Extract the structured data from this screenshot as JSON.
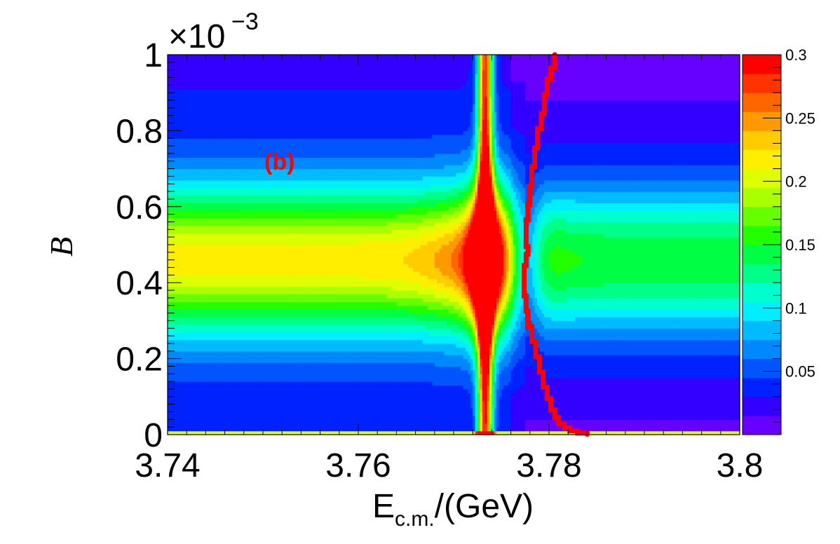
{
  "chart_data": {
    "type": "heatmap",
    "title": "",
    "panel_label": "(b)",
    "xlabel_main": "E",
    "xlabel_subscript": "c.m.",
    "xlabel_tail": "/(GeV)",
    "ylabel": "B",
    "y_multiplier_base": "×10",
    "y_multiplier_exp": "−3",
    "xlim": [
      3.74,
      3.8
    ],
    "ylim": [
      0,
      1.0
    ],
    "x_ticks": [
      3.74,
      3.76,
      3.78,
      3.8
    ],
    "x_tick_labels": [
      "3.74",
      "3.76",
      "3.78",
      "3.8"
    ],
    "y_ticks": [
      0,
      0.2,
      0.4,
      0.6,
      0.8,
      1.0
    ],
    "y_tick_labels": [
      "0",
      "0.2",
      "0.4",
      "0.6",
      "0.8",
      "1"
    ],
    "grid": false,
    "colorbar": {
      "range": [
        0,
        0.3
      ],
      "ticks": [
        0.05,
        0.1,
        0.15,
        0.2,
        0.25,
        0.3
      ],
      "tick_labels": [
        "0.05",
        "0.1",
        "0.15",
        "0.2",
        "0.25",
        "0.3"
      ],
      "colors": [
        "#6600ff",
        "#3300ff",
        "#0022ff",
        "#0055ff",
        "#0088ff",
        "#00bbff",
        "#00eeff",
        "#00ffcc",
        "#00ff88",
        "#00ff44",
        "#22ff00",
        "#66ff00",
        "#aaff00",
        "#ddff00",
        "#ffee00",
        "#ffcc00",
        "#ff9900",
        "#ff6600",
        "#ff3300",
        "#ff0000"
      ]
    },
    "heatmap_model": {
      "resonance_center": 3.7733,
      "band_center_left": 0.46,
      "band_center_right": 0.46,
      "band_width": 0.13,
      "band_peak_left": 0.17,
      "band_peak_right": 0.11,
      "interference_zero": 3.7775,
      "floor": 0.02
    },
    "overlay_series": {
      "name": "",
      "color": "#ff0000",
      "points": [
        {
          "x": 3.7806,
          "y": 1.0
        },
        {
          "x": 3.7806,
          "y": 0.965
        },
        {
          "x": 3.7802,
          "y": 0.935
        },
        {
          "x": 3.7798,
          "y": 0.895
        },
        {
          "x": 3.7795,
          "y": 0.845
        },
        {
          "x": 3.7792,
          "y": 0.805
        },
        {
          "x": 3.7788,
          "y": 0.755
        },
        {
          "x": 3.7785,
          "y": 0.705
        },
        {
          "x": 3.7782,
          "y": 0.655
        },
        {
          "x": 3.778,
          "y": 0.605
        },
        {
          "x": 3.7778,
          "y": 0.565
        },
        {
          "x": 3.7776,
          "y": 0.525
        },
        {
          "x": 3.7776,
          "y": 0.495
        },
        {
          "x": 3.7778,
          "y": 0.475
        },
        {
          "x": 3.7776,
          "y": 0.445
        },
        {
          "x": 3.7774,
          "y": 0.405
        },
        {
          "x": 3.7774,
          "y": 0.365
        },
        {
          "x": 3.7776,
          "y": 0.325
        },
        {
          "x": 3.7778,
          "y": 0.285
        },
        {
          "x": 3.7782,
          "y": 0.245
        },
        {
          "x": 3.7786,
          "y": 0.205
        },
        {
          "x": 3.779,
          "y": 0.165
        },
        {
          "x": 3.7794,
          "y": 0.125
        },
        {
          "x": 3.7798,
          "y": 0.095
        },
        {
          "x": 3.7802,
          "y": 0.065
        },
        {
          "x": 3.7806,
          "y": 0.045
        },
        {
          "x": 3.781,
          "y": 0.028
        },
        {
          "x": 3.7816,
          "y": 0.018
        },
        {
          "x": 3.7822,
          "y": 0.01
        },
        {
          "x": 3.783,
          "y": 0.004
        },
        {
          "x": 3.784,
          "y": 0.001
        }
      ]
    }
  }
}
